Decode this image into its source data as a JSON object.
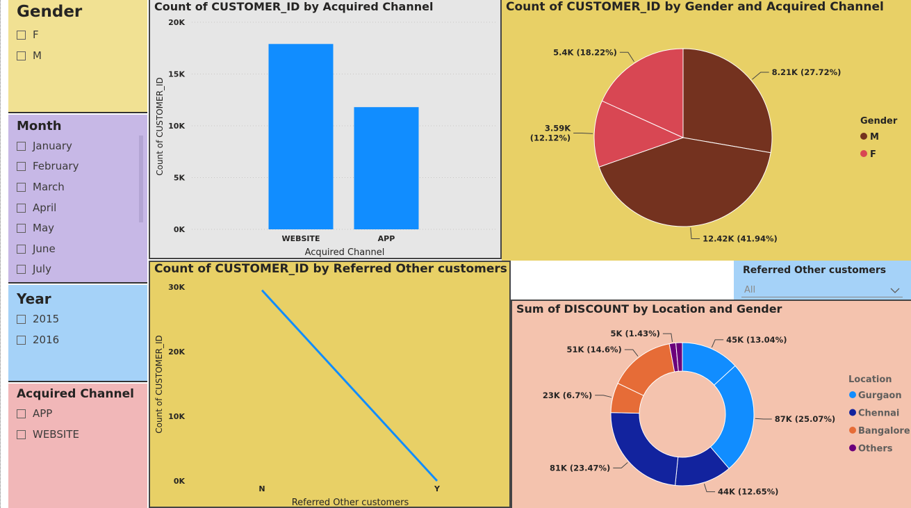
{
  "slicers": {
    "gender": {
      "title": "Gender",
      "options": [
        "F",
        "M"
      ]
    },
    "month": {
      "title": "Month",
      "options": [
        "January",
        "February",
        "March",
        "April",
        "May",
        "June",
        "July"
      ]
    },
    "year": {
      "title": "Year",
      "options": [
        "2015",
        "2016"
      ]
    },
    "channel": {
      "title": "Acquired Channel",
      "options": [
        "APP",
        "WEBSITE"
      ]
    },
    "referred": {
      "title": "Referred Other customers",
      "value": "All"
    }
  },
  "colors": {
    "gender_bg": "#f1e193",
    "month_bg": "#c7b8e6",
    "year_bg": "#a5d2f8",
    "channel_bg": "#f1b7b8",
    "bar_bg": "#e6e6e6",
    "yellow_bg": "#e8d066",
    "salmon_bg": "#f4c3ae",
    "bar": "#118dff",
    "male": "#74321f",
    "female": "#d84753",
    "gurgaon": "#118dff",
    "chennai": "#12239e",
    "bangalore": "#e66c37",
    "others": "#6b007b"
  },
  "chart_data": [
    {
      "type": "bar",
      "title": "Count of CUSTOMER_ID by Acquired Channel",
      "xlabel": "Acquired Channel",
      "ylabel": "Count of CUSTOMER_ID",
      "categories": [
        "WEBSITE",
        "APP"
      ],
      "values": [
        17900,
        11800
      ],
      "ylim": [
        0,
        20000
      ],
      "ticks": [
        "0K",
        "5K",
        "10K",
        "15K",
        "20K"
      ],
      "grid": true
    },
    {
      "type": "pie",
      "title": "Count of CUSTOMER_ID by Gender and Acquired Channel",
      "legend_title": "Gender",
      "legend": [
        "M",
        "F"
      ],
      "slices": [
        {
          "gender": "M",
          "value": 8210,
          "label": "8.21K (27.72%)"
        },
        {
          "gender": "M",
          "value": 12420,
          "label": "12.42K (41.94%)"
        },
        {
          "gender": "F",
          "value": 3590,
          "label": "3.59K (12.12%)"
        },
        {
          "gender": "F",
          "value": 5400,
          "label": "5.4K (18.22%)"
        }
      ],
      "legend_position": "right"
    },
    {
      "type": "line",
      "title": "Count of CUSTOMER_ID by Referred Other customers",
      "xlabel": "Referred Other customers",
      "ylabel": "Count of CUSTOMER_ID",
      "categories": [
        "N",
        "Y"
      ],
      "values": [
        29500,
        0
      ],
      "ylim": [
        0,
        30000
      ],
      "ticks": [
        "0K",
        "10K",
        "20K",
        "30K"
      ]
    },
    {
      "type": "pie",
      "donut": true,
      "title": "Sum of DISCOUNT by Location and Gender",
      "legend_title": "Location",
      "legend": [
        "Gurgaon",
        "Chennai",
        "Bangalore",
        "Others"
      ],
      "slices": [
        {
          "location": "Gurgaon",
          "value": 45,
          "label": "45K (13.04%)"
        },
        {
          "location": "Gurgaon",
          "value": 87,
          "label": "87K (25.07%)"
        },
        {
          "location": "Chennai",
          "value": 44,
          "label": "44K (12.65%)"
        },
        {
          "location": "Chennai",
          "value": 81,
          "label": "81K (23.47%)"
        },
        {
          "location": "Bangalore",
          "value": 23,
          "label": "23K (6.7%)"
        },
        {
          "location": "Bangalore",
          "value": 51,
          "label": "51K (14.6%)"
        },
        {
          "location": "Others",
          "value": 5,
          "label": "5K (1.43%)"
        },
        {
          "location": "Others",
          "value": 5,
          "label": ""
        }
      ],
      "legend_position": "right"
    }
  ]
}
